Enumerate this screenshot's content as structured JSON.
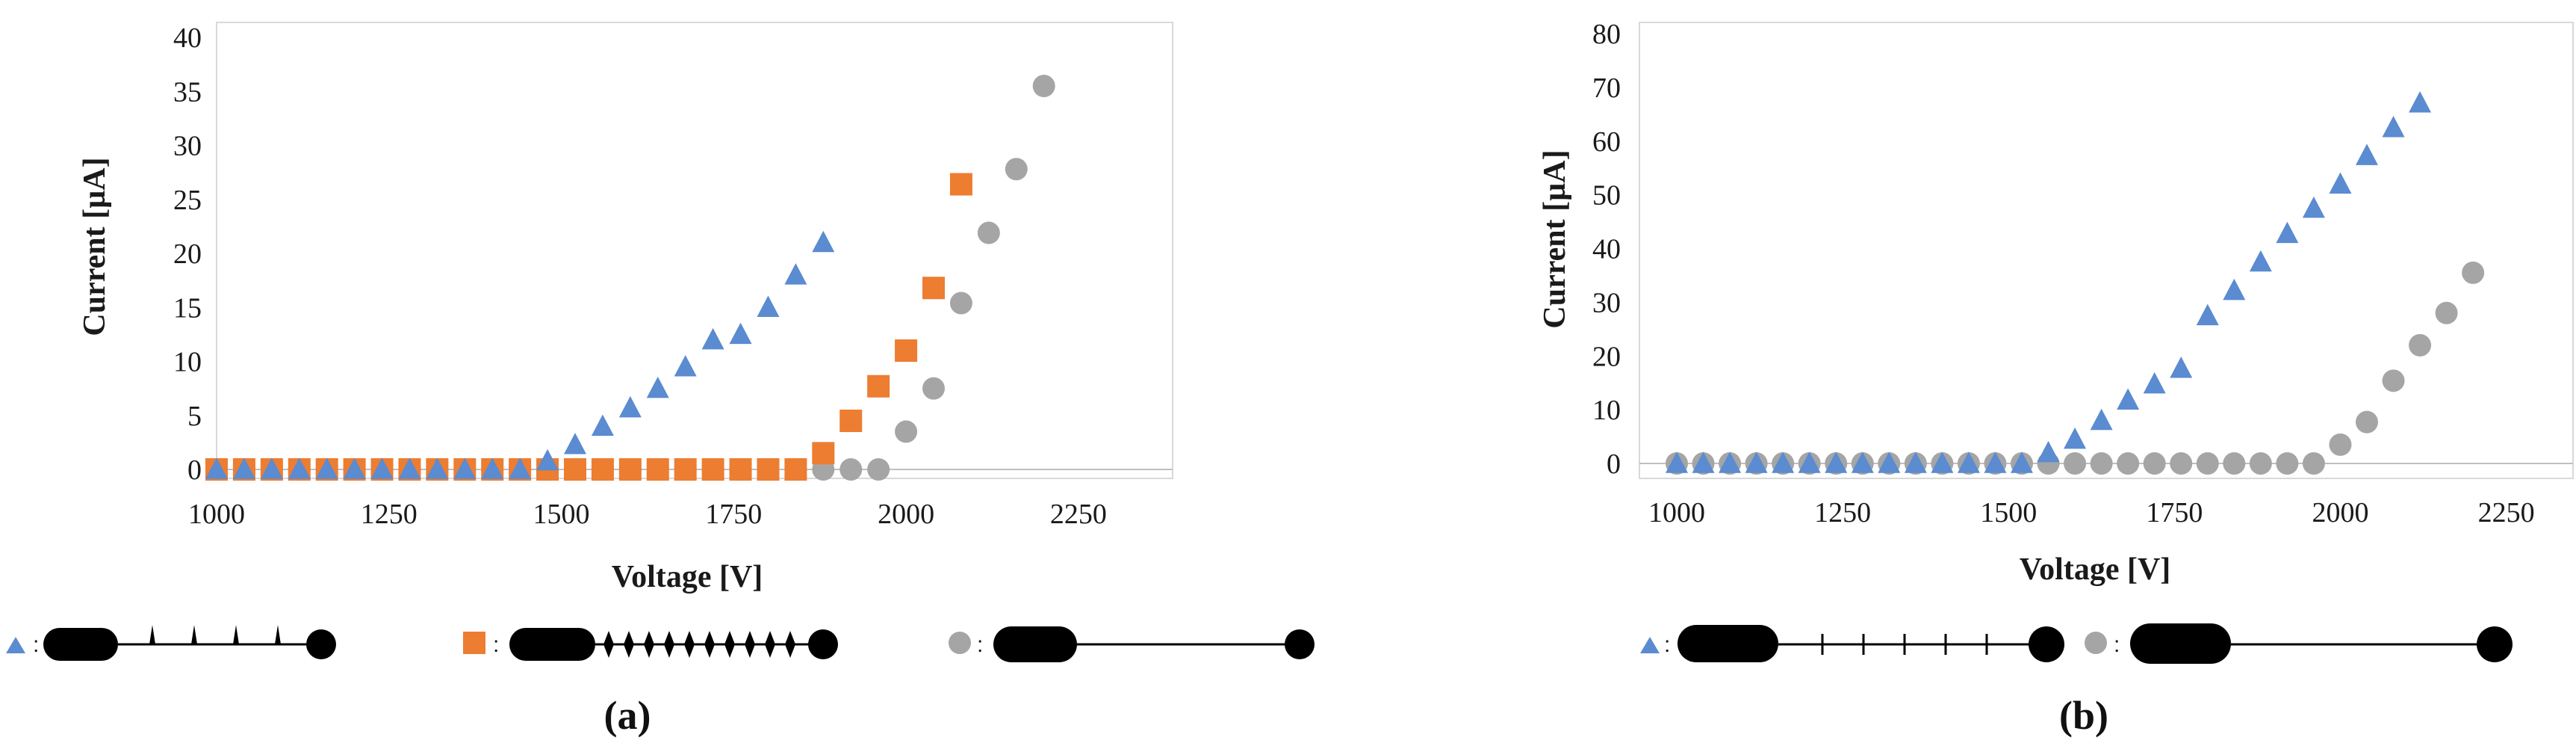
{
  "colors": {
    "triangle": "#5B8BD0",
    "square": "#ED7D31",
    "circle": "#A5A5A5",
    "frame": "#D9D9D9",
    "text": "#1a1a1a"
  },
  "chart_data": [
    {
      "type": "scatter",
      "panel_label": "(a)",
      "xlabel": "Voltage [V]",
      "ylabel": "Current [µA]",
      "xlim": [
        1000,
        2300
      ],
      "ylim": [
        0,
        40
      ],
      "xticks": [
        "1000",
        "1250",
        "1500",
        "1750",
        "2000",
        "2250"
      ],
      "yticks": [
        "0",
        "5",
        "10",
        "15",
        "20",
        "25",
        "30",
        "35",
        "40"
      ],
      "grid": false,
      "legend": "below",
      "series": [
        {
          "marker": "triangle",
          "x": [
            1000,
            1040,
            1080,
            1120,
            1160,
            1200,
            1240,
            1280,
            1320,
            1360,
            1400,
            1440,
            1480,
            1520,
            1560,
            1600,
            1640,
            1680,
            1720,
            1760,
            1800,
            1840,
            1880
          ],
          "y": [
            0,
            0,
            0,
            0,
            0,
            0,
            0,
            0,
            0,
            0,
            0,
            0,
            0.8,
            2.3,
            4,
            5.7,
            7.5,
            9.5,
            12,
            12.5,
            15,
            18,
            21
          ]
        },
        {
          "marker": "square",
          "x": [
            1000,
            1040,
            1080,
            1120,
            1160,
            1200,
            1240,
            1280,
            1320,
            1360,
            1400,
            1440,
            1480,
            1520,
            1560,
            1600,
            1640,
            1680,
            1720,
            1760,
            1800,
            1840,
            1880,
            1920,
            1960,
            2000,
            2040,
            2080
          ],
          "y": [
            0,
            0,
            0,
            0,
            0,
            0,
            0,
            0,
            0,
            0,
            0,
            0,
            0,
            0,
            0,
            0,
            0,
            0,
            0,
            0,
            0,
            0,
            1.5,
            4.5,
            7.7,
            11,
            16.8,
            26.4
          ]
        },
        {
          "marker": "circle",
          "x": [
            1000,
            1040,
            1080,
            1120,
            1160,
            1200,
            1240,
            1280,
            1320,
            1360,
            1400,
            1440,
            1480,
            1520,
            1560,
            1600,
            1640,
            1680,
            1720,
            1760,
            1800,
            1840,
            1880,
            1920,
            1960,
            2000,
            2040,
            2080,
            2120,
            2160,
            2200
          ],
          "y": [
            0,
            0,
            0,
            0,
            0,
            0,
            0,
            0,
            0,
            0,
            0,
            0,
            0,
            0,
            0,
            0,
            0,
            0,
            0,
            0,
            0,
            0,
            0,
            0,
            0,
            3.5,
            7.5,
            15.4,
            21.9,
            27.8,
            35.5
          ]
        }
      ]
    },
    {
      "type": "scatter",
      "panel_label": "(b)",
      "xlabel": "Voltage [V]",
      "ylabel": "Current [µA]",
      "xlim": [
        1000,
        2300
      ],
      "ylim": [
        0,
        80
      ],
      "xticks": [
        "1000",
        "1250",
        "1500",
        "1750",
        "2000",
        "2250"
      ],
      "yticks": [
        "0",
        "10",
        "20",
        "30",
        "40",
        "50",
        "60",
        "70",
        "80"
      ],
      "grid": false,
      "legend": "below",
      "series": [
        {
          "marker": "triangle",
          "x": [
            1000,
            1040,
            1080,
            1120,
            1160,
            1200,
            1240,
            1280,
            1320,
            1360,
            1400,
            1440,
            1480,
            1520,
            1560,
            1600,
            1640,
            1680,
            1720,
            1760,
            1800,
            1840,
            1880,
            1920,
            1960,
            2000,
            2040,
            2080,
            2120
          ],
          "y": [
            0,
            0,
            0,
            0,
            0,
            0,
            0,
            0,
            0,
            0,
            0,
            0,
            0,
            0,
            2,
            4.5,
            8,
            11.8,
            14.8,
            17.7,
            27.5,
            32.2,
            37.5,
            42.8,
            47.5,
            52,
            57.3,
            62.5,
            67.1
          ]
        },
        {
          "marker": "circle",
          "x": [
            1000,
            1040,
            1080,
            1120,
            1160,
            1200,
            1240,
            1280,
            1320,
            1360,
            1400,
            1440,
            1480,
            1520,
            1560,
            1600,
            1640,
            1680,
            1720,
            1760,
            1800,
            1840,
            1880,
            1920,
            1960,
            2000,
            2040,
            2080,
            2120,
            2160,
            2200
          ],
          "y": [
            0,
            0,
            0,
            0,
            0,
            0,
            0,
            0,
            0,
            0,
            0,
            0,
            0,
            0,
            0,
            0,
            0,
            0,
            0,
            0,
            0,
            0,
            0,
            0,
            0,
            3.5,
            7.7,
            15.4,
            22,
            28,
            35.5
          ]
        }
      ]
    }
  ],
  "legend_a": {
    "sep_1": ":",
    "sep_2": ":",
    "sep_3": ":"
  },
  "legend_b": {
    "sep_1": ":",
    "sep_2": ":"
  }
}
